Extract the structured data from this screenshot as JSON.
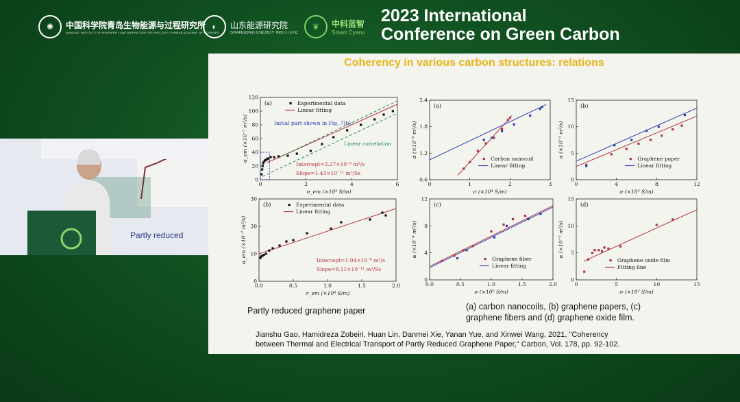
{
  "header": {
    "logo1": {
      "cn": "中国科学院青岛生物能源与过程研究所",
      "en": "QINGDAO INSTITUTE OF BIOENERGY AND BIOPROCESS TECHNOLOGY, CHINESE ACADEMY OF SCIENCES"
    },
    "logo2": {
      "cn": "山东能源研究院",
      "en": "SHANDONG ENERGY INSTITUTE"
    },
    "logo3": {
      "cn": "中科蓝智",
      "en": "Smart Cyano"
    },
    "conference_line1": "2023 International",
    "conference_line2": "Conference on Green Carbon"
  },
  "slide": {
    "title": "Coherency in various carbon structures: relations",
    "caption_left": "Partly reduced graphene paper",
    "caption_right_1": "(a) carbon nanocoils, (b) graphene papers, (c)",
    "caption_right_2": "graphene fibers and (d) graphene oxide film.",
    "citation_1": "Jianshu Gao, Hamidreza Zobeiri, Huan Lin, Danmei Xie, Yanan Yue, and Xinwei Wang, 2021, \"Coherency",
    "citation_2": "between Thermal and Electrical Transport of Partly Reduced Graphene Paper,\" Carbon, Vol. 178, pp. 92-102."
  },
  "video": {
    "slide_text": "Partly reduced"
  },
  "colors": {
    "accent": "#e8b415",
    "background": "#0f4d1f",
    "blue": "#2b3fb0",
    "red": "#b0303a"
  },
  "chart_data": [
    {
      "id": "left-a",
      "type": "scatter",
      "panel": "(a)",
      "xlabel": "σ_em (×10⁵ S/m)",
      "ylabel": "α_em (×10⁻⁷ m²/s)",
      "xlim": [
        0,
        6
      ],
      "ylim": [
        0,
        120
      ],
      "xticks": [
        "0",
        "2",
        "4",
        "6"
      ],
      "yticks": [
        "0",
        "20",
        "40",
        "60",
        "80",
        "100",
        "120"
      ],
      "legend": [
        "Experimental data",
        "Linear fitting"
      ],
      "annotations": [
        "Initial part shown in Fig. 7(b)",
        "Linear correlation",
        "Intercept=2.27×10⁻⁶ m²/s",
        "Slope=1.43×10⁻¹¹ m³/Ss"
      ],
      "series": [
        {
          "points": [
            [
              0.05,
              8
            ],
            [
              0.08,
              15
            ],
            [
              0.1,
              20
            ],
            [
              0.12,
              24
            ],
            [
              0.15,
              26
            ],
            [
              0.2,
              28
            ],
            [
              0.25,
              29
            ],
            [
              0.3,
              30
            ],
            [
              0.35,
              31
            ],
            [
              0.45,
              33
            ],
            [
              0.6,
              33
            ],
            [
              0.8,
              34
            ],
            [
              1.2,
              35
            ],
            [
              1.6,
              38
            ],
            [
              2.2,
              42
            ],
            [
              2.7,
              52
            ],
            [
              3.2,
              62
            ],
            [
              3.8,
              72
            ],
            [
              4.4,
              80
            ],
            [
              5.0,
              88
            ],
            [
              5.4,
              95
            ],
            [
              5.8,
              100
            ]
          ]
        }
      ],
      "fit": [
        [
          0.3,
          25
        ],
        [
          6,
          110
        ]
      ]
    },
    {
      "id": "left-b",
      "type": "scatter",
      "panel": "(b)",
      "xlabel": "σ_em (×10⁴ S/m)",
      "ylabel": "α_em (×10⁻⁷ m²/s)",
      "xlim": [
        0,
        2.0
      ],
      "ylim": [
        0,
        30
      ],
      "xticks": [
        "0.0",
        "0.5",
        "1.0",
        "1.5",
        "2.0"
      ],
      "yticks": [
        "0",
        "10",
        "20",
        "30"
      ],
      "legend": [
        "Experimental data",
        "Linear fitting"
      ],
      "annotations": [
        "Intercept=1.04×10⁻⁶ m²/s",
        "Slope=8.11×10⁻¹¹ m³/Ss"
      ],
      "series": [
        {
          "points": [
            [
              0.02,
              8.5
            ],
            [
              0.03,
              9
            ],
            [
              0.05,
              9.3
            ],
            [
              0.07,
              9.6
            ],
            [
              0.1,
              10
            ],
            [
              0.15,
              11.2
            ],
            [
              0.2,
              12
            ],
            [
              0.3,
              13
            ],
            [
              0.4,
              14.5
            ],
            [
              0.5,
              15
            ],
            [
              0.7,
              17.5
            ],
            [
              1.05,
              19.2
            ],
            [
              1.2,
              21.5
            ],
            [
              1.62,
              22.5
            ],
            [
              1.8,
              25
            ],
            [
              1.85,
              24
            ]
          ]
        }
      ],
      "fit": [
        [
          0,
          10
        ],
        [
          2.0,
          26.5
        ]
      ]
    },
    {
      "id": "right-a",
      "type": "scatter",
      "panel": "(a)",
      "xlabel": "σ (×10⁴ S/m)",
      "ylabel": "α (×10⁻⁶ m²/s)",
      "xlim": [
        0,
        3
      ],
      "ylim": [
        0.6,
        2.4
      ],
      "xticks": [
        "0",
        "1",
        "2",
        "3"
      ],
      "yticks": [
        "0.6",
        "1.2",
        "1.8",
        "2.4"
      ],
      "legend": [
        "Carbon nanocoil",
        "Linear fitting"
      ],
      "series": [
        {
          "name": "red",
          "points": [
            [
              0.85,
              0.85
            ],
            [
              1.0,
              1.0
            ],
            [
              1.2,
              1.25
            ],
            [
              1.4,
              1.42
            ],
            [
              1.6,
              1.55
            ],
            [
              1.8,
              1.75
            ],
            [
              1.95,
              1.95
            ],
            [
              2.0,
              2.0
            ]
          ]
        },
        {
          "name": "blue",
          "points": [
            [
              1.35,
              1.5
            ],
            [
              1.55,
              1.55
            ],
            [
              1.8,
              1.7
            ],
            [
              2.1,
              1.85
            ],
            [
              2.5,
              2.05
            ],
            [
              2.75,
              2.2
            ],
            [
              2.8,
              2.25
            ]
          ]
        }
      ],
      "fit_red": [
        [
          0.7,
          0.7
        ],
        [
          2.05,
          2.05
        ]
      ],
      "fit_blue": [
        [
          0,
          1.05
        ],
        [
          2.9,
          2.3
        ]
      ]
    },
    {
      "id": "right-b",
      "type": "scatter",
      "panel": "(b)",
      "xlabel": "σ (×10⁵ S/m)",
      "ylabel": "α (×10⁻⁵ m²/s)",
      "xlim": [
        0,
        12
      ],
      "ylim": [
        0,
        15
      ],
      "xticks": [
        "0",
        "4",
        "8",
        "12"
      ],
      "yticks": [
        "0",
        "5",
        "10",
        "15"
      ],
      "legend": [
        "Graphene paper",
        "Linear fitting"
      ],
      "series": [
        {
          "name": "red",
          "points": [
            [
              1,
              2.8
            ],
            [
              3.5,
              4.8
            ],
            [
              5,
              5.8
            ],
            [
              6.2,
              6.8
            ],
            [
              7.4,
              7.5
            ],
            [
              8.5,
              8.3
            ],
            [
              9.6,
              9.5
            ],
            [
              10.5,
              10.2
            ]
          ]
        },
        {
          "name": "blue",
          "points": [
            [
              1,
              2.6
            ],
            [
              3.8,
              6.5
            ],
            [
              5.5,
              7.5
            ],
            [
              7,
              9.2
            ],
            [
              8.2,
              10
            ],
            [
              10.8,
              12.2
            ]
          ]
        }
      ],
      "fit_red": [
        [
          0,
          2.5
        ],
        [
          12,
          12
        ]
      ],
      "fit_blue": [
        [
          0,
          3.5
        ],
        [
          12,
          13.5
        ]
      ]
    },
    {
      "id": "right-c",
      "type": "scatter",
      "panel": "(c)",
      "xlabel": "σ (×10⁵ S/m)",
      "ylabel": "α (×10⁻⁴ m²/s)",
      "xlim": [
        0,
        2.0
      ],
      "ylim": [
        0,
        12
      ],
      "xticks": [
        "0.0",
        "0.5",
        "1.0",
        "1.5",
        "2.0"
      ],
      "yticks": [
        "0",
        "4",
        "8",
        "12"
      ],
      "legend": [
        "Graphene fiber",
        "Linear fitting"
      ],
      "series": [
        {
          "name": "red",
          "points": [
            [
              0.2,
              2.8
            ],
            [
              0.4,
              3.6
            ],
            [
              0.55,
              4.4
            ],
            [
              0.7,
              5
            ],
            [
              1.0,
              7.2
            ],
            [
              1.2,
              8.2
            ],
            [
              1.35,
              9
            ],
            [
              1.55,
              9.5
            ]
          ]
        },
        {
          "name": "blue",
          "points": [
            [
              0.45,
              3.2
            ],
            [
              0.6,
              4.4
            ],
            [
              1.05,
              6.3
            ],
            [
              1.25,
              8
            ],
            [
              1.6,
              9
            ],
            [
              1.8,
              9.8
            ]
          ]
        }
      ],
      "fit_red": [
        [
          0,
          2
        ],
        [
          2.0,
          11
        ]
      ],
      "fit_blue": [
        [
          0,
          1.8
        ],
        [
          2.0,
          10.8
        ]
      ]
    },
    {
      "id": "right-d",
      "type": "scatter",
      "panel": "(d)",
      "xlabel": "σ (×10³ S/m)",
      "ylabel": "α (×10⁻⁵ m²/s)",
      "xlim": [
        0,
        15
      ],
      "ylim": [
        0,
        15
      ],
      "xticks": [
        "0",
        "5",
        "10",
        "15"
      ],
      "yticks": [
        "0",
        "5",
        "10",
        "15"
      ],
      "legend": [
        "Graphene oxide film",
        "Fitting line"
      ],
      "series": [
        {
          "points": [
            [
              1,
              1.5
            ],
            [
              1.5,
              3.8
            ],
            [
              2,
              5
            ],
            [
              2.3,
              5.5
            ],
            [
              2.8,
              5.5
            ],
            [
              3.2,
              5.3
            ],
            [
              3.5,
              6
            ],
            [
              4,
              5.8
            ],
            [
              5.5,
              6.2
            ],
            [
              10,
              10.2
            ],
            [
              12,
              11.2
            ]
          ]
        }
      ],
      "fit": [
        [
          1,
          3.5
        ],
        [
          15,
          13
        ]
      ]
    }
  ]
}
